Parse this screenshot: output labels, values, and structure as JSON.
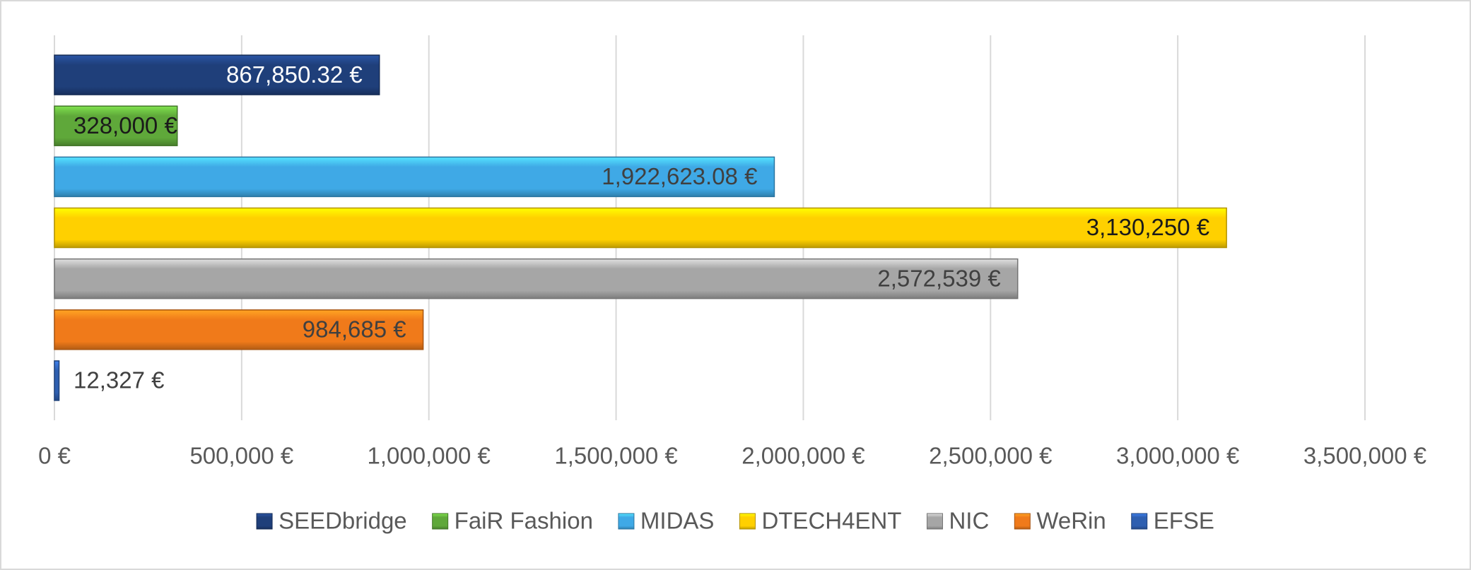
{
  "chart_data": {
    "type": "bar",
    "orientation": "horizontal",
    "series": [
      {
        "name": "SEEDbridge",
        "color": "#1f3f7a",
        "values": [
          867850.32
        ],
        "value_labels": [
          "867,850.32 €"
        ]
      },
      {
        "name": "FaiR Fashion",
        "color": "#5fa83a",
        "values": [
          328000
        ],
        "value_labels": [
          "328,000 €"
        ]
      },
      {
        "name": "MIDAS",
        "color": "#3fa9e6",
        "values": [
          1922623.08
        ],
        "value_labels": [
          "1,922,623.08 €"
        ]
      },
      {
        "name": "DTECH4ENT",
        "color": "#ffd000",
        "values": [
          3130250
        ],
        "value_labels": [
          "3,130,250 €"
        ]
      },
      {
        "name": "NIC",
        "color": "#a6a6a6",
        "values": [
          2572539
        ],
        "value_labels": [
          "2,572,539 €"
        ]
      },
      {
        "name": "WeRin",
        "color": "#f07a1a",
        "values": [
          984685
        ],
        "value_labels": [
          "984,685 €"
        ]
      },
      {
        "name": "EFSE",
        "color": "#2e5fb0",
        "values": [
          12327
        ],
        "value_labels": [
          "12,327 €"
        ]
      }
    ],
    "xlim": [
      0,
      3500000
    ],
    "xticks": [
      {
        "value": 0,
        "label": "0 €"
      },
      {
        "value": 500000,
        "label": "500,000 €"
      },
      {
        "value": 1000000,
        "label": "1,000,000 €"
      },
      {
        "value": 1500000,
        "label": "1,500,000 €"
      },
      {
        "value": 2000000,
        "label": "2,000,000 €"
      },
      {
        "value": 2500000,
        "label": "2,500,000 €"
      },
      {
        "value": 3000000,
        "label": "3,000,000 €"
      },
      {
        "value": 3500000,
        "label": "3,500,000 €"
      }
    ],
    "grid": true,
    "legend": "bottom"
  }
}
